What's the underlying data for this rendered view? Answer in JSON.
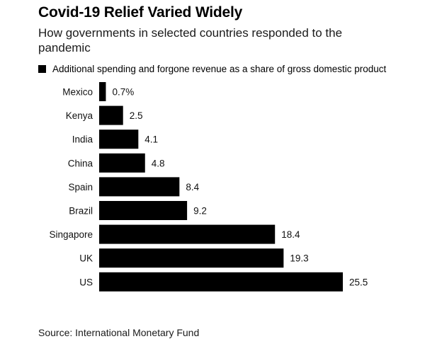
{
  "header": {
    "title": "Covid-19 Relief Varied Widely",
    "subtitle": "How governments in selected countries responded to the pandemic"
  },
  "legend": {
    "label": "Additional spending and forgone revenue as a share of gross domestic product"
  },
  "footer": {
    "source": "Source: International Monetary Fund"
  },
  "colors": {
    "bar": "#000000",
    "text": "#111111"
  },
  "chart_data": {
    "type": "bar",
    "orientation": "horizontal",
    "title": "Covid-19 Relief Varied Widely",
    "subtitle": "How governments in selected countries responded to the pandemic",
    "categories": [
      "Mexico",
      "Kenya",
      "India",
      "China",
      "Spain",
      "Brazil",
      "Singapore",
      "UK",
      "US"
    ],
    "series": [
      {
        "name": "Additional spending and forgone revenue as a share of gross domestic product",
        "values": [
          0.7,
          2.5,
          4.1,
          4.8,
          8.4,
          9.2,
          18.4,
          19.3,
          25.5
        ]
      }
    ],
    "value_labels": [
      "0.7%",
      "2.5",
      "4.1",
      "4.8",
      "8.4",
      "9.2",
      "18.4",
      "19.3",
      "25.5"
    ],
    "xlim": [
      0,
      25.5
    ],
    "grid": false,
    "legend_position": "top-left"
  }
}
